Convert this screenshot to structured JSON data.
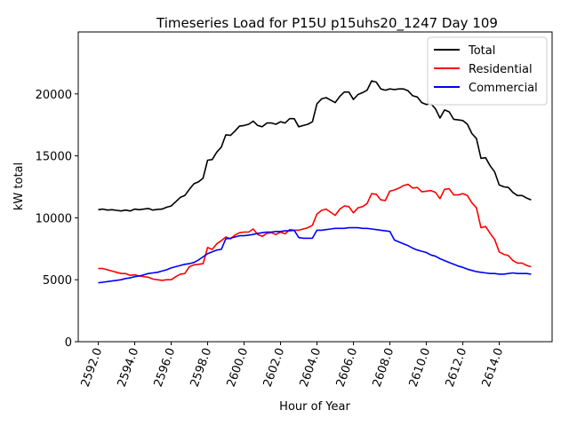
{
  "chart_data": {
    "type": "line",
    "title": "Timeseries Load for P15U p15uhs20_1247  Day 109",
    "xlabel": "Hour of Year",
    "ylabel": "kW total",
    "xlim": [
      2590.9,
      2616.9
    ],
    "ylim": [
      0,
      25000
    ],
    "x_ticks": [
      2592,
      2594,
      2596,
      2598,
      2600,
      2602,
      2604,
      2606,
      2608,
      2610,
      2612,
      2614
    ],
    "x_tick_labels": [
      "2592.0",
      "2594.0",
      "2596.0",
      "2598.0",
      "2600.0",
      "2602.0",
      "2604.0",
      "2606.0",
      "2608.0",
      "2610.0",
      "2612.0",
      "2614.0"
    ],
    "y_ticks": [
      0,
      5000,
      10000,
      15000,
      20000
    ],
    "y_tick_labels": [
      "0",
      "5000",
      "10000",
      "15000",
      "20000"
    ],
    "legend_position": "top-right",
    "x_start": 2592,
    "x_step": 0.25,
    "series": [
      {
        "name": "Total",
        "color": "#000000",
        "values": [
          10650,
          10700,
          10620,
          10650,
          10600,
          10550,
          10620,
          10550,
          10700,
          10650,
          10700,
          10750,
          10620,
          10680,
          10700,
          10850,
          10950,
          11300,
          11650,
          11800,
          12300,
          12750,
          12900,
          13200,
          14650,
          14700,
          15300,
          15700,
          16700,
          16650,
          17000,
          17400,
          17450,
          17550,
          17800,
          17450,
          17350,
          17650,
          17650,
          17550,
          17750,
          17650,
          18000,
          18000,
          17350,
          17450,
          17550,
          17750,
          19200,
          19600,
          19700,
          19500,
          19300,
          19800,
          20150,
          20150,
          19550,
          19950,
          20100,
          20300,
          21050,
          20950,
          20400,
          20300,
          20400,
          20350,
          20400,
          20400,
          20250,
          19850,
          19750,
          19300,
          19150,
          19200,
          18800,
          18050,
          18700,
          18550,
          17950,
          17900,
          17850,
          17550,
          16800,
          16400,
          14800,
          14850,
          14200,
          13700,
          12650,
          12500,
          12450,
          12050,
          11800,
          11800,
          11600,
          11450
        ]
      },
      {
        "name": "Residential",
        "color": "#ff0000",
        "values": [
          5900,
          5900,
          5800,
          5700,
          5600,
          5500,
          5500,
          5350,
          5400,
          5300,
          5250,
          5200,
          5050,
          5000,
          4950,
          5000,
          5000,
          5250,
          5450,
          5500,
          6050,
          6200,
          6250,
          6300,
          7600,
          7450,
          7900,
          8150,
          8450,
          8300,
          8600,
          8800,
          8850,
          8850,
          9100,
          8650,
          8500,
          8750,
          8800,
          8650,
          8850,
          8700,
          9050,
          9000,
          9000,
          9100,
          9200,
          9400,
          10300,
          10600,
          10700,
          10450,
          10200,
          10700,
          10950,
          10900,
          10400,
          10800,
          10900,
          11150,
          11950,
          11900,
          11450,
          11400,
          12150,
          12250,
          12400,
          12600,
          12700,
          12400,
          12450,
          12100,
          12150,
          12200,
          12050,
          11550,
          12300,
          12350,
          11850,
          11850,
          11950,
          11800,
          11200,
          10800,
          9200,
          9300,
          8750,
          8250,
          7250,
          7050,
          6950,
          6550,
          6350,
          6350,
          6150,
          6050
        ]
      },
      {
        "name": "Commercial",
        "color": "#0000ff",
        "values": [
          4750,
          4800,
          4850,
          4900,
          4950,
          5000,
          5100,
          5150,
          5250,
          5300,
          5400,
          5500,
          5550,
          5600,
          5700,
          5800,
          5950,
          6050,
          6150,
          6250,
          6300,
          6400,
          6600,
          6850,
          7100,
          7250,
          7400,
          7450,
          8300,
          8350,
          8450,
          8550,
          8550,
          8600,
          8650,
          8750,
          8800,
          8850,
          8850,
          8900,
          8900,
          8950,
          8950,
          9000,
          8400,
          8350,
          8350,
          8350,
          9000,
          9000,
          9050,
          9100,
          9150,
          9150,
          9150,
          9200,
          9200,
          9200,
          9150,
          9150,
          9100,
          9050,
          9000,
          8950,
          8900,
          8200,
          8050,
          7900,
          7750,
          7550,
          7400,
          7300,
          7200,
          7000,
          6900,
          6700,
          6550,
          6400,
          6250,
          6100,
          6000,
          5850,
          5750,
          5650,
          5600,
          5550,
          5500,
          5500,
          5450,
          5450,
          5500,
          5550,
          5500,
          5500,
          5500,
          5450
        ]
      }
    ]
  }
}
